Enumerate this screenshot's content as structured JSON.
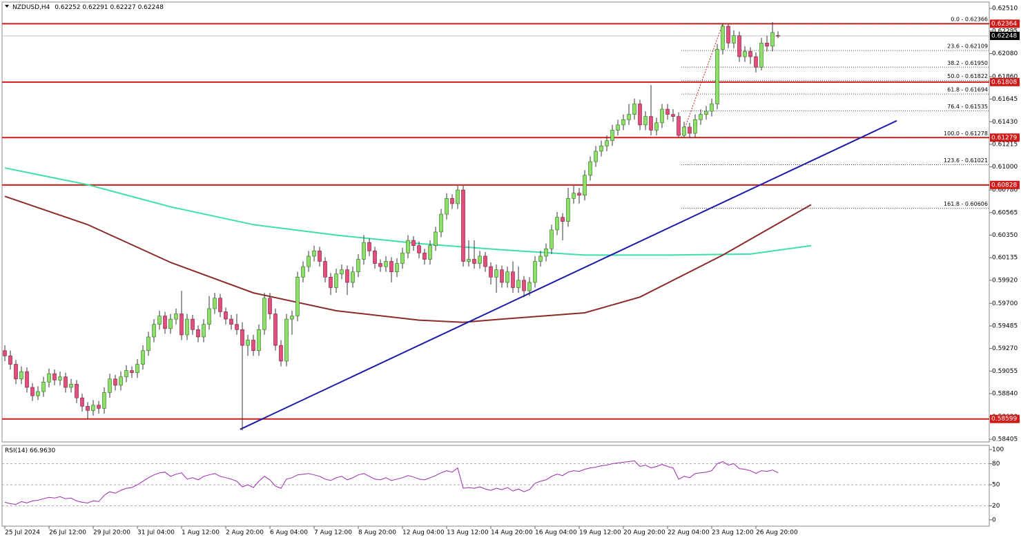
{
  "chart_data": {
    "type": "candlestick",
    "title": "NZDUSD,H4",
    "xlim": [
      -0.5,
      178.25
    ],
    "ylim": [
      0.5838,
      0.6257
    ],
    "xticks": [
      {
        "value": 0,
        "label": "25 Jul 2024"
      },
      {
        "value": 8,
        "label": "26 Jul 12:00"
      },
      {
        "value": 16,
        "label": "29 Jul 20:00"
      },
      {
        "value": 24,
        "label": "31 Jul 04:00"
      },
      {
        "value": 32,
        "label": "1 Aug 12:00"
      },
      {
        "value": 40,
        "label": "2 Aug 20:00"
      },
      {
        "value": 48,
        "label": "6 Aug 04:00"
      },
      {
        "value": 56,
        "label": "7 Aug 12:00"
      },
      {
        "value": 64,
        "label": "8 Aug 20:00"
      },
      {
        "value": 72,
        "label": "12 Aug 04:00"
      },
      {
        "value": 80,
        "label": "13 Aug 12:00"
      },
      {
        "value": 88,
        "label": "14 Aug 20:00"
      },
      {
        "value": 96,
        "label": "16 Aug 04:00"
      },
      {
        "value": 104,
        "label": "19 Aug 12:00"
      },
      {
        "value": 112,
        "label": "20 Aug 20:00"
      },
      {
        "value": 120,
        "label": "22 Aug 04:00"
      },
      {
        "value": 128,
        "label": "23 Aug 12:00"
      },
      {
        "value": 136,
        "label": "26 Aug 20:00"
      }
    ],
    "yticks": [
      {
        "value": 0.6251,
        "label": "0.62510"
      },
      {
        "value": 0.62295,
        "label": "0.62295"
      },
      {
        "value": 0.6208,
        "label": "0.62080"
      },
      {
        "value": 0.6186,
        "label": "0.61860"
      },
      {
        "value": 0.61645,
        "label": "0.61645"
      },
      {
        "value": 0.6143,
        "label": "0.61430"
      },
      {
        "value": 0.61215,
        "label": "0.61215"
      },
      {
        "value": 0.61,
        "label": "0.61000"
      },
      {
        "value": 0.6078,
        "label": "0.60780"
      },
      {
        "value": 0.60565,
        "label": "0.60565"
      },
      {
        "value": 0.6035,
        "label": "0.60350"
      },
      {
        "value": 0.60135,
        "label": "0.60135"
      },
      {
        "value": 0.5992,
        "label": "0.59920"
      },
      {
        "value": 0.597,
        "label": "0.59700"
      },
      {
        "value": 0.59485,
        "label": "0.59485"
      },
      {
        "value": 0.5927,
        "label": "0.59270"
      },
      {
        "value": 0.59055,
        "label": "0.59055"
      },
      {
        "value": 0.5884,
        "label": "0.58840"
      },
      {
        "value": 0.5862,
        "label": "0.58620"
      },
      {
        "value": 0.58405,
        "label": "0.58405"
      }
    ],
    "bull_color": "#8fe06a",
    "bear_color": "#e24d7a",
    "candles": [
      [
        0.5925,
        0.593,
        0.5915,
        0.592
      ],
      [
        0.592,
        0.5925,
        0.5907,
        0.5912
      ],
      [
        0.5912,
        0.5916,
        0.5893,
        0.5898
      ],
      [
        0.5898,
        0.591,
        0.5893,
        0.5905
      ],
      [
        0.5905,
        0.5909,
        0.5885,
        0.589
      ],
      [
        0.589,
        0.5894,
        0.5877,
        0.5882
      ],
      [
        0.5882,
        0.5891,
        0.5878,
        0.5886
      ],
      [
        0.5886,
        0.59,
        0.5881,
        0.5895
      ],
      [
        0.5895,
        0.5908,
        0.589,
        0.5903
      ],
      [
        0.5903,
        0.5907,
        0.5892,
        0.5897
      ],
      [
        0.5897,
        0.5905,
        0.5892,
        0.59
      ],
      [
        0.59,
        0.5904,
        0.5885,
        0.589
      ],
      [
        0.589,
        0.5898,
        0.5885,
        0.5893
      ],
      [
        0.5893,
        0.5897,
        0.5875,
        0.588
      ],
      [
        0.588,
        0.5884,
        0.5867,
        0.5872
      ],
      [
        0.5872,
        0.5876,
        0.586,
        0.5868
      ],
      [
        0.5868,
        0.5878,
        0.5863,
        0.5873
      ],
      [
        0.5873,
        0.5877,
        0.5865,
        0.587
      ],
      [
        0.587,
        0.589,
        0.5865,
        0.5885
      ],
      [
        0.5885,
        0.5903,
        0.588,
        0.5898
      ],
      [
        0.5898,
        0.5902,
        0.5887,
        0.5892
      ],
      [
        0.5892,
        0.5905,
        0.5887,
        0.59
      ],
      [
        0.59,
        0.5911,
        0.5895,
        0.5906
      ],
      [
        0.5906,
        0.591,
        0.5899,
        0.5904
      ],
      [
        0.5904,
        0.5917,
        0.5899,
        0.5912
      ],
      [
        0.5912,
        0.593,
        0.5907,
        0.5925
      ],
      [
        0.5925,
        0.5943,
        0.592,
        0.5938
      ],
      [
        0.5938,
        0.5955,
        0.5933,
        0.595
      ],
      [
        0.595,
        0.5963,
        0.5945,
        0.5958
      ],
      [
        0.5958,
        0.5962,
        0.5941,
        0.5946
      ],
      [
        0.5946,
        0.596,
        0.5941,
        0.5955
      ],
      [
        0.5955,
        0.5965,
        0.595,
        0.596
      ],
      [
        0.596,
        0.5982,
        0.5935,
        0.594
      ],
      [
        0.594,
        0.596,
        0.5935,
        0.5955
      ],
      [
        0.5955,
        0.5959,
        0.594,
        0.5945
      ],
      [
        0.5945,
        0.5949,
        0.5933,
        0.5938
      ],
      [
        0.5938,
        0.5955,
        0.5933,
        0.595
      ],
      [
        0.595,
        0.5977,
        0.5945,
        0.5965
      ],
      [
        0.5965,
        0.598,
        0.596,
        0.5975
      ],
      [
        0.5975,
        0.5979,
        0.5957,
        0.5962
      ],
      [
        0.5962,
        0.5966,
        0.595,
        0.5955
      ],
      [
        0.5955,
        0.5959,
        0.5945,
        0.595
      ],
      [
        0.595,
        0.596,
        0.594,
        0.5945
      ],
      [
        0.5945,
        0.5952,
        0.5849,
        0.593
      ],
      [
        0.593,
        0.594,
        0.592,
        0.5935
      ],
      [
        0.5935,
        0.594,
        0.592,
        0.5925
      ],
      [
        0.5925,
        0.595,
        0.592,
        0.5945
      ],
      [
        0.5945,
        0.598,
        0.594,
        0.5975
      ],
      [
        0.5975,
        0.598,
        0.5955,
        0.596
      ],
      [
        0.596,
        0.5965,
        0.5925,
        0.593
      ],
      [
        0.593,
        0.5935,
        0.591,
        0.5915
      ],
      [
        0.5915,
        0.596,
        0.591,
        0.5955
      ],
      [
        0.5955,
        0.5963,
        0.594,
        0.5958
      ],
      [
        0.5958,
        0.6,
        0.5953,
        0.5995
      ],
      [
        0.5995,
        0.601,
        0.599,
        0.6005
      ],
      [
        0.6005,
        0.602,
        0.6,
        0.6015
      ],
      [
        0.6015,
        0.6025,
        0.601,
        0.602
      ],
      [
        0.602,
        0.6024,
        0.6005,
        0.601
      ],
      [
        0.601,
        0.6014,
        0.599,
        0.5995
      ],
      [
        0.5995,
        0.5999,
        0.5978,
        0.5985
      ],
      [
        0.5985,
        0.6003,
        0.598,
        0.5998
      ],
      [
        0.5998,
        0.6007,
        0.5993,
        0.6002
      ],
      [
        0.6002,
        0.6006,
        0.5978,
        0.599
      ],
      [
        0.599,
        0.6005,
        0.5985,
        0.6
      ],
      [
        0.6,
        0.6017,
        0.5995,
        0.6012
      ],
      [
        0.6012,
        0.6035,
        0.6007,
        0.6028
      ],
      [
        0.6028,
        0.6032,
        0.6015,
        0.602
      ],
      [
        0.602,
        0.6024,
        0.6003,
        0.6008
      ],
      [
        0.6008,
        0.6012,
        0.6,
        0.6005
      ],
      [
        0.6005,
        0.6015,
        0.6,
        0.601
      ],
      [
        0.601,
        0.6014,
        0.599,
        0.6
      ],
      [
        0.6,
        0.6013,
        0.5995,
        0.6008
      ],
      [
        0.6008,
        0.6023,
        0.6003,
        0.6018
      ],
      [
        0.6018,
        0.6035,
        0.6013,
        0.603
      ],
      [
        0.603,
        0.6034,
        0.602,
        0.6025
      ],
      [
        0.6025,
        0.6029,
        0.6013,
        0.6018
      ],
      [
        0.6018,
        0.6022,
        0.6007,
        0.6012
      ],
      [
        0.6012,
        0.603,
        0.6007,
        0.6025
      ],
      [
        0.6025,
        0.6043,
        0.602,
        0.6038
      ],
      [
        0.6038,
        0.606,
        0.6033,
        0.6055
      ],
      [
        0.6055,
        0.6075,
        0.605,
        0.607
      ],
      [
        0.607,
        0.6074,
        0.606,
        0.6065
      ],
      [
        0.6065,
        0.6082,
        0.606,
        0.6078
      ],
      [
        0.6078,
        0.6082,
        0.6005,
        0.601
      ],
      [
        0.601,
        0.603,
        0.6005,
        0.6012
      ],
      [
        0.6012,
        0.603,
        0.6003,
        0.6008
      ],
      [
        0.6008,
        0.602,
        0.6003,
        0.6015
      ],
      [
        0.6015,
        0.6019,
        0.6,
        0.6005
      ],
      [
        0.6005,
        0.6009,
        0.5988,
        0.5995
      ],
      [
        0.5995,
        0.6007,
        0.598,
        0.6002
      ],
      [
        0.6002,
        0.6006,
        0.5985,
        0.599
      ],
      [
        0.599,
        0.6005,
        0.5985,
        0.6
      ],
      [
        0.6,
        0.601,
        0.598,
        0.5985
      ],
      [
        0.5985,
        0.6005,
        0.598,
        0.5992
      ],
      [
        0.5992,
        0.5996,
        0.5976,
        0.5982
      ],
      [
        0.5982,
        0.5995,
        0.5977,
        0.599
      ],
      [
        0.599,
        0.6015,
        0.5985,
        0.601
      ],
      [
        0.601,
        0.602,
        0.6005,
        0.6015
      ],
      [
        0.6015,
        0.6027,
        0.601,
        0.6022
      ],
      [
        0.6022,
        0.6045,
        0.6017,
        0.604
      ],
      [
        0.604,
        0.6057,
        0.6035,
        0.6052
      ],
      [
        0.6052,
        0.6056,
        0.603,
        0.6048
      ],
      [
        0.6048,
        0.608,
        0.6043,
        0.607
      ],
      [
        0.607,
        0.6082,
        0.6065,
        0.6075
      ],
      [
        0.6075,
        0.608,
        0.6065,
        0.6073
      ],
      [
        0.6073,
        0.6097,
        0.6068,
        0.6092
      ],
      [
        0.6092,
        0.611,
        0.6087,
        0.6105
      ],
      [
        0.6105,
        0.612,
        0.61,
        0.6115
      ],
      [
        0.6115,
        0.6125,
        0.611,
        0.612
      ],
      [
        0.612,
        0.613,
        0.6115,
        0.6125
      ],
      [
        0.6125,
        0.614,
        0.612,
        0.6135
      ],
      [
        0.6135,
        0.6145,
        0.613,
        0.614
      ],
      [
        0.614,
        0.615,
        0.6135,
        0.6145
      ],
      [
        0.6145,
        0.616,
        0.614,
        0.615
      ],
      [
        0.615,
        0.6165,
        0.6145,
        0.616
      ],
      [
        0.616,
        0.6164,
        0.6135,
        0.614
      ],
      [
        0.614,
        0.6153,
        0.6135,
        0.6148
      ],
      [
        0.6148,
        0.6178,
        0.613,
        0.6135
      ],
      [
        0.6135,
        0.6147,
        0.613,
        0.6142
      ],
      [
        0.6142,
        0.616,
        0.6137,
        0.6155
      ],
      [
        0.6155,
        0.616,
        0.6145,
        0.615
      ],
      [
        0.615,
        0.6155,
        0.6143,
        0.6148
      ],
      [
        0.6148,
        0.6152,
        0.6128,
        0.613
      ],
      [
        0.613,
        0.6143,
        0.6128,
        0.6138
      ],
      [
        0.6138,
        0.6142,
        0.6128,
        0.6132
      ],
      [
        0.6132,
        0.615,
        0.6128,
        0.6145
      ],
      [
        0.6145,
        0.6155,
        0.614,
        0.615
      ],
      [
        0.615,
        0.6158,
        0.6145,
        0.6153
      ],
      [
        0.6153,
        0.6165,
        0.6148,
        0.616
      ],
      [
        0.616,
        0.6217,
        0.6155,
        0.6212
      ],
      [
        0.6212,
        0.62366,
        0.6207,
        0.6234
      ],
      [
        0.6234,
        0.6236,
        0.6213,
        0.6218
      ],
      [
        0.6218,
        0.623,
        0.6213,
        0.6225
      ],
      [
        0.6225,
        0.6229,
        0.62,
        0.6205
      ],
      [
        0.6205,
        0.6215,
        0.62,
        0.621
      ],
      [
        0.621,
        0.6214,
        0.6198,
        0.6205
      ],
      [
        0.6205,
        0.6209,
        0.619,
        0.6195
      ],
      [
        0.6195,
        0.6223,
        0.6192,
        0.6218
      ],
      [
        0.6218,
        0.6225,
        0.621,
        0.6215
      ],
      [
        0.6215,
        0.6238,
        0.621,
        0.6228
      ],
      [
        0.62252,
        0.62291,
        0.62227,
        0.62248
      ]
    ],
    "moving_averages": [
      {
        "color": "#3ee0a6",
        "x": [
          0,
          15,
          30,
          45,
          60,
          75,
          90,
          105,
          120,
          135,
          146
        ],
        "values": [
          0.6099,
          0.6083,
          0.6062,
          0.6045,
          0.6035,
          0.6027,
          0.6021,
          0.6016,
          0.6016,
          0.6017,
          0.6025
        ]
      },
      {
        "color": "#8b2a2a",
        "x": [
          0,
          15,
          30,
          45,
          60,
          75,
          83,
          90,
          105,
          115,
          130,
          146
        ],
        "values": [
          0.6072,
          0.6045,
          0.6009,
          0.598,
          0.5963,
          0.5954,
          0.5952,
          0.5955,
          0.5961,
          0.5976,
          0.6016,
          0.6064
        ]
      }
    ],
    "trendline": {
      "color": "#1a1aa8",
      "x": [
        42.6,
        161.5
      ],
      "values": [
        0.585,
        0.6144
      ]
    },
    "horizontal_lines": {
      "color": "#d11a1a",
      "values": [
        0.62364,
        0.61808,
        0.61279,
        0.60828,
        0.58599
      ]
    },
    "fibonacci": {
      "color": "#d11a1a",
      "text_color": "#1a237e",
      "x": [
        122.5,
        130
      ],
      "values": [
        0.61278,
        0.62366
      ],
      "levels": [
        {
          "label": "0.0 - 0.62366",
          "value": 0.62366
        },
        {
          "label": "23.6 - 0.62109",
          "value": 0.62109
        },
        {
          "label": "38.2 - 0.61950",
          "value": 0.6195
        },
        {
          "label": "50.0 - 0.61822",
          "value": 0.61822
        },
        {
          "label": "61.8 - 0.61694",
          "value": 0.61694
        },
        {
          "label": "76.4 - 0.61535",
          "value": 0.61535
        },
        {
          "label": "100.0 - 0.61278",
          "value": 0.61278
        },
        {
          "label": "123.6 - 0.61021",
          "value": 0.61021
        },
        {
          "label": "161.8 - 0.60606",
          "value": 0.60606
        }
      ]
    },
    "rsi": {
      "name": "RSI(14)",
      "value_label": "66.9630",
      "color": "#9c27b0",
      "ylim": [
        -9,
        106
      ],
      "yticks": [
        100,
        80,
        50,
        20,
        0
      ],
      "levels": [
        80,
        50,
        20
      ],
      "values": [
        25,
        23,
        22,
        26,
        24,
        27,
        28,
        30,
        32,
        31,
        33,
        30,
        31,
        27,
        25,
        24,
        27,
        26,
        35,
        40,
        38,
        42,
        45,
        46,
        50,
        55,
        60,
        64,
        67,
        68,
        62,
        65,
        67,
        58,
        60,
        57,
        62,
        64,
        66,
        62,
        60,
        58,
        55,
        47,
        50,
        46,
        55,
        62,
        57,
        48,
        45,
        58,
        60,
        64,
        65,
        66,
        64,
        62,
        58,
        56,
        60,
        62,
        57,
        60,
        64,
        66,
        62,
        58,
        57,
        60,
        56,
        58,
        60,
        63,
        61,
        58,
        57,
        60,
        63,
        67,
        70,
        68,
        74,
        45,
        46,
        45,
        47,
        44,
        42,
        45,
        43,
        46,
        41,
        44,
        40,
        43,
        52,
        55,
        57,
        62,
        65,
        63,
        68,
        70,
        69,
        72,
        74,
        75,
        77,
        78,
        80,
        81,
        82,
        83,
        84,
        76,
        78,
        74,
        76,
        79,
        76,
        74,
        58,
        62,
        60,
        66,
        67,
        68,
        70,
        80,
        83,
        78,
        80,
        73,
        72,
        70,
        66,
        70,
        69,
        71,
        66.963
      ]
    }
  }
}
